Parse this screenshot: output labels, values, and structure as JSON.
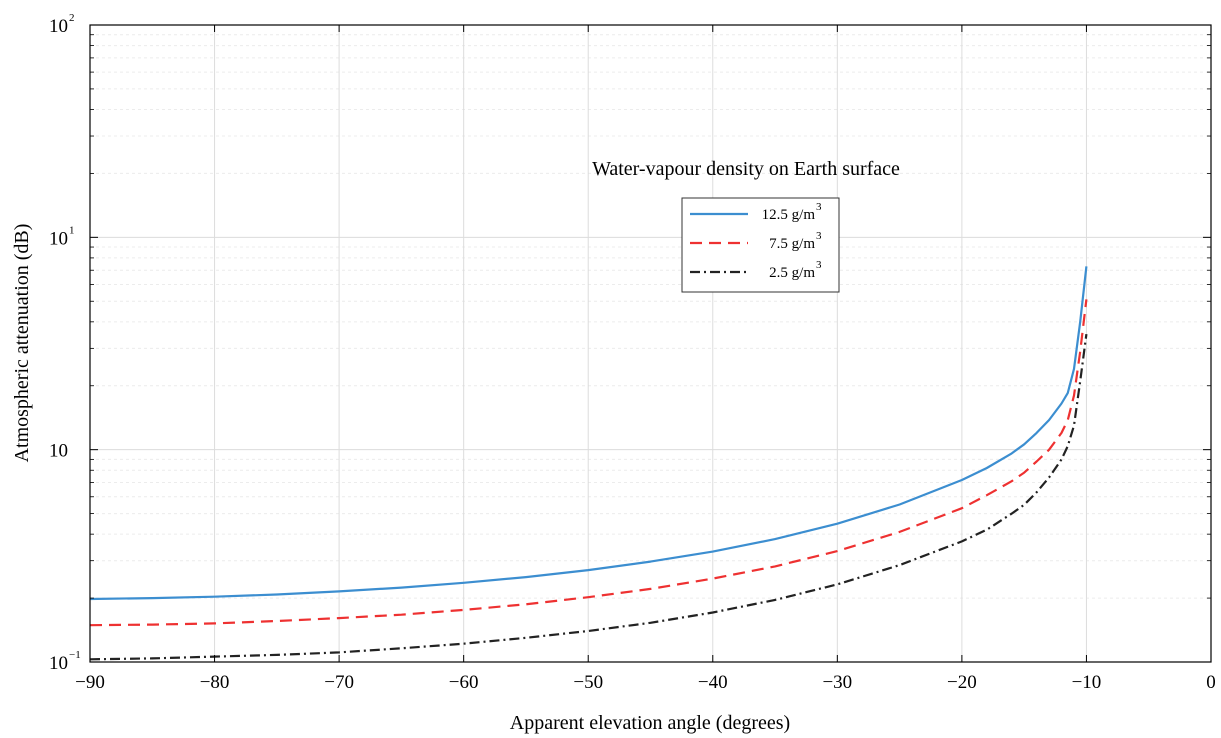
{
  "chart_data": {
    "type": "line",
    "title": "",
    "xlabel": "Apparent elevation angle (degrees)",
    "ylabel": "Atmospheric attenuation (dB)",
    "xlim": [
      -90,
      0
    ],
    "ylim": [
      0.1,
      100
    ],
    "yscale": "log",
    "grid": true,
    "x_ticks": [
      "−90",
      "−80",
      "−70",
      "−60",
      "−50",
      "−40",
      "−30",
      "−20",
      "−10",
      "0"
    ],
    "y_ticks": [
      {
        "base": "10",
        "exp": "−1"
      },
      {
        "base": "10",
        "exp": ""
      },
      {
        "base": "10",
        "exp": "1"
      },
      {
        "base": "10",
        "exp": "2"
      }
    ],
    "annotation": "Water-vapour density on Earth surface",
    "legend_placement": "upper-center",
    "x": [
      -90,
      -85,
      -80,
      -75,
      -70,
      -65,
      -60,
      -55,
      -50,
      -45,
      -40,
      -35,
      -30,
      -25,
      -20,
      -18,
      -16,
      -15,
      -14,
      -13,
      -12,
      -11.5,
      -11,
      -10.5,
      -10
    ],
    "series": [
      {
        "name": "12.5 g/m",
        "name_sup": "3",
        "color": "#3c8ed0",
        "dash": "",
        "values": [
          0.198,
          0.2,
          0.203,
          0.208,
          0.215,
          0.224,
          0.236,
          0.251,
          0.271,
          0.297,
          0.331,
          0.379,
          0.448,
          0.552,
          0.72,
          0.82,
          0.96,
          1.06,
          1.2,
          1.38,
          1.65,
          1.85,
          2.4,
          4.0,
          7.3
        ]
      },
      {
        "name": "7.5 g/m",
        "name_sup": "3",
        "color": "#ee3131",
        "dash": "12,7",
        "values": [
          0.149,
          0.15,
          0.152,
          0.156,
          0.161,
          0.167,
          0.176,
          0.187,
          0.202,
          0.221,
          0.247,
          0.282,
          0.333,
          0.41,
          0.53,
          0.61,
          0.71,
          0.78,
          0.88,
          1.0,
          1.2,
          1.38,
          1.8,
          2.9,
          5.1
        ]
      },
      {
        "name": "2.5 g/m",
        "name_sup": "3",
        "color": "#222222",
        "dash": "10,4,2,4",
        "values": [
          0.103,
          0.104,
          0.106,
          0.108,
          0.111,
          0.116,
          0.122,
          0.13,
          0.14,
          0.153,
          0.171,
          0.196,
          0.232,
          0.286,
          0.37,
          0.42,
          0.5,
          0.55,
          0.63,
          0.74,
          0.9,
          1.04,
          1.3,
          2.1,
          3.5
        ]
      }
    ]
  }
}
